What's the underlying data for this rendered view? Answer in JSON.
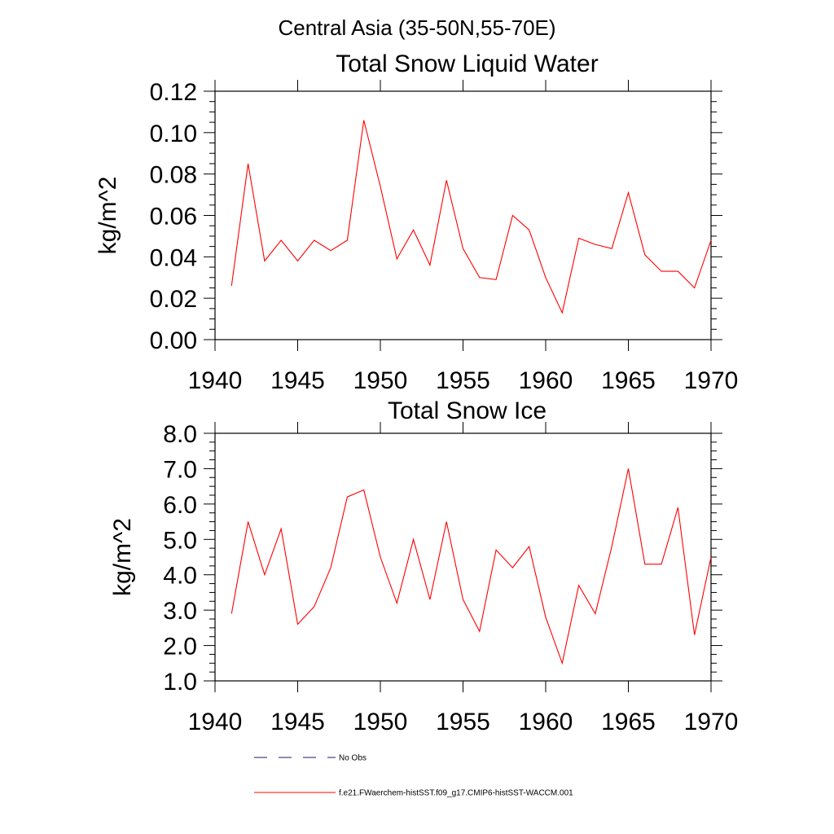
{
  "suptitle": "Central Asia (35-50N,55-70E)",
  "legend": {
    "items": [
      {
        "name": "No Obs",
        "color": "#1a1a6e",
        "style": "dashed"
      },
      {
        "name": "f.e21.FWaerchem-histSST.f09_g17.CMIP6-histSST-WACCM.001",
        "color": "#ff0000",
        "style": "solid"
      }
    ]
  },
  "chart_data": [
    {
      "type": "line",
      "title": "Total Snow Liquid Water",
      "xlabel": "",
      "ylabel": "kg/m^2",
      "xlim": [
        1940,
        1970
      ],
      "ylim": [
        0.0,
        0.12
      ],
      "xticks": [
        "1940",
        "1945",
        "1950",
        "1955",
        "1960",
        "1965",
        "1970"
      ],
      "yticks": [
        "0.00",
        "0.02",
        "0.04",
        "0.06",
        "0.08",
        "0.10",
        "0.12"
      ],
      "series": [
        {
          "color": "#ff0000",
          "x": [
            1941,
            1942,
            1943,
            1944,
            1945,
            1946,
            1947,
            1948,
            1949,
            1950,
            1951,
            1952,
            1953,
            1954,
            1955,
            1956,
            1957,
            1958,
            1959,
            1960,
            1961,
            1962,
            1963,
            1964,
            1965,
            1966,
            1967,
            1968,
            1969,
            1970
          ],
          "y": [
            0.026,
            0.085,
            0.038,
            0.048,
            0.038,
            0.048,
            0.043,
            0.048,
            0.106,
            0.074,
            0.039,
            0.053,
            0.036,
            0.077,
            0.044,
            0.03,
            0.029,
            0.06,
            0.053,
            0.03,
            0.013,
            0.049,
            0.046,
            0.044,
            0.071,
            0.041,
            0.033,
            0.033,
            0.025,
            0.048
          ]
        }
      ]
    },
    {
      "type": "line",
      "title": "Total Snow Ice",
      "xlabel": "",
      "ylabel": "kg/m^2",
      "xlim": [
        1940,
        1970
      ],
      "ylim": [
        1.0,
        8.0
      ],
      "xticks": [
        "1940",
        "1945",
        "1950",
        "1955",
        "1960",
        "1965",
        "1970"
      ],
      "yticks": [
        "1.0",
        "2.0",
        "3.0",
        "4.0",
        "5.0",
        "6.0",
        "7.0",
        "8.0"
      ],
      "series": [
        {
          "color": "#ff0000",
          "x": [
            1941,
            1942,
            1943,
            1944,
            1945,
            1946,
            1947,
            1948,
            1949,
            1950,
            1951,
            1952,
            1953,
            1954,
            1955,
            1956,
            1957,
            1958,
            1959,
            1960,
            1961,
            1962,
            1963,
            1964,
            1965,
            1966,
            1967,
            1968,
            1969,
            1970
          ],
          "y": [
            2.9,
            5.5,
            4.0,
            5.3,
            2.6,
            3.1,
            4.2,
            6.2,
            6.4,
            4.5,
            3.2,
            5.0,
            3.3,
            5.5,
            3.3,
            2.4,
            4.7,
            4.2,
            4.8,
            2.8,
            1.5,
            3.7,
            2.9,
            4.8,
            7.0,
            4.3,
            4.3,
            5.9,
            2.3,
            4.5
          ]
        }
      ]
    }
  ]
}
